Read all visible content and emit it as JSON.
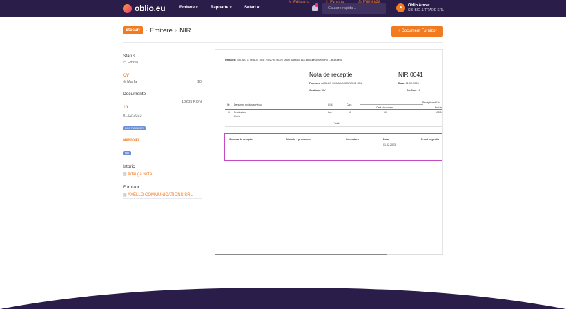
{
  "header": {
    "logo": "oblio.eu",
    "nav": [
      {
        "label": "Emitere"
      },
      {
        "label": "Rapoarte"
      },
      {
        "label": "Setari"
      }
    ],
    "search_placeholder": "Cautare rapida ..",
    "user_name": "Oblio Arrow",
    "user_company": "SIS BIO & TRADE SRL"
  },
  "breadcrumb": {
    "badge": "Stocuri",
    "level1": "Emitere",
    "level2": "NIR"
  },
  "actions": {
    "edit": "Editeaza",
    "export": "Exporta",
    "print": "Printeaza",
    "primary": "Document Furnizor"
  },
  "sidebar": {
    "status_title": "Status",
    "status_value": "Emisa",
    "cv_title": "CV",
    "cv_item": "Marfa",
    "cv_qty": "10",
    "docs_title": "Documente",
    "doc_number": "10",
    "doc_amount": "18285 RON",
    "doc_date": "01.02.2023",
    "doc_tag": "DOC FURNIZOR",
    "nir_title": "NIR0041",
    "nir_tag": "NIR",
    "istoric_title": "Istoric",
    "istoric_link": "Adauga Nota",
    "furnizor_title": "Furnizor",
    "furnizor_link": "AXELLO COMMUNICATIONS SRL"
  },
  "document": {
    "unitatea_label": "Unitatea:",
    "unitatea_value": "SIS BIO & TRADE SRL, RO27947809 | Drum Agatului 118, Bucuresti Sectorul 1, Bucuresti",
    "title": "Nota de receptie",
    "number": "NIR 0041",
    "furnizor_label": "Furnizor:",
    "furnizor_value": "AXELLO COMMUNICATIONS SRL",
    "data_label": "Data:",
    "data_value": "01.02.2023",
    "gestiune_label": "Gestiune:",
    "gestiune_value": "CV",
    "nrdoc_label": "Nr.Doc:",
    "nrdoc_value": "10",
    "table_headers": {
      "nr": "Nr.",
      "name": "Denumire produs/serviciu",
      "um": "U.M.",
      "cant": "Cant.",
      "receptionat": "Receptionat(1%",
      "cant_doc": "Cant. document",
      "pret": "Pret ar"
    },
    "row": {
      "nr": "1",
      "name": "Produs test",
      "sub": "Marfa",
      "um": "buc",
      "cant": "10",
      "cant_doc": "10",
      "pret": "135,00"
    },
    "total_label": "Total",
    "commission": {
      "c1": "Comisia de receptie",
      "c2": "Numele + prenumele",
      "c3": "Semnatura",
      "c4": "Data",
      "c5": "Primit in gestiu",
      "date": "01.02.2023"
    }
  },
  "colors": {
    "brand_dark": "#2b1d4a",
    "accent": "#f27a21",
    "highlight": "#c44bc2"
  }
}
